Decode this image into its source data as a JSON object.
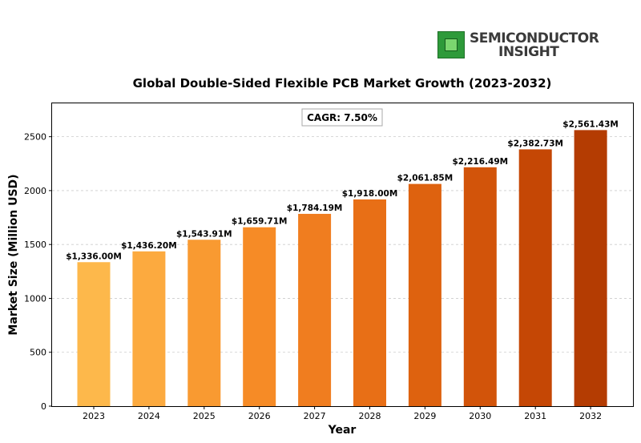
{
  "logo": {
    "line1": "SEMICONDUCTOR",
    "line2": "INSIGHT",
    "icon": "chip-icon"
  },
  "chart_data": {
    "type": "bar",
    "title": "Global Double-Sided Flexible PCB Market Growth (2023-2032)",
    "xlabel": "Year",
    "ylabel": "Market Size (Million USD)",
    "categories": [
      "2023",
      "2024",
      "2025",
      "2026",
      "2027",
      "2028",
      "2029",
      "2030",
      "2031",
      "2032"
    ],
    "values": [
      1336.0,
      1436.2,
      1543.91,
      1659.71,
      1784.19,
      1918.0,
      2061.85,
      2216.49,
      2382.73,
      2561.43
    ],
    "data_labels": [
      "$1,336.00M",
      "$1,436.20M",
      "$1,543.91M",
      "$1,659.71M",
      "$1,784.19M",
      "$1,918.00M",
      "$2,061.85M",
      "$2,216.49M",
      "$2,382.73M",
      "$2,561.43M"
    ],
    "annotation": "CAGR: 7.50%",
    "ylim": [
      0,
      2817
    ],
    "yticks": [
      0,
      500,
      1000,
      1500,
      2000,
      2500
    ],
    "grid": true,
    "bar_colors": [
      "#fdb84b",
      "#fcaa3f",
      "#f99a31",
      "#f68b26",
      "#f07d1f",
      "#e86f16",
      "#de620f",
      "#d2540a",
      "#c54705",
      "#b43c02"
    ]
  }
}
